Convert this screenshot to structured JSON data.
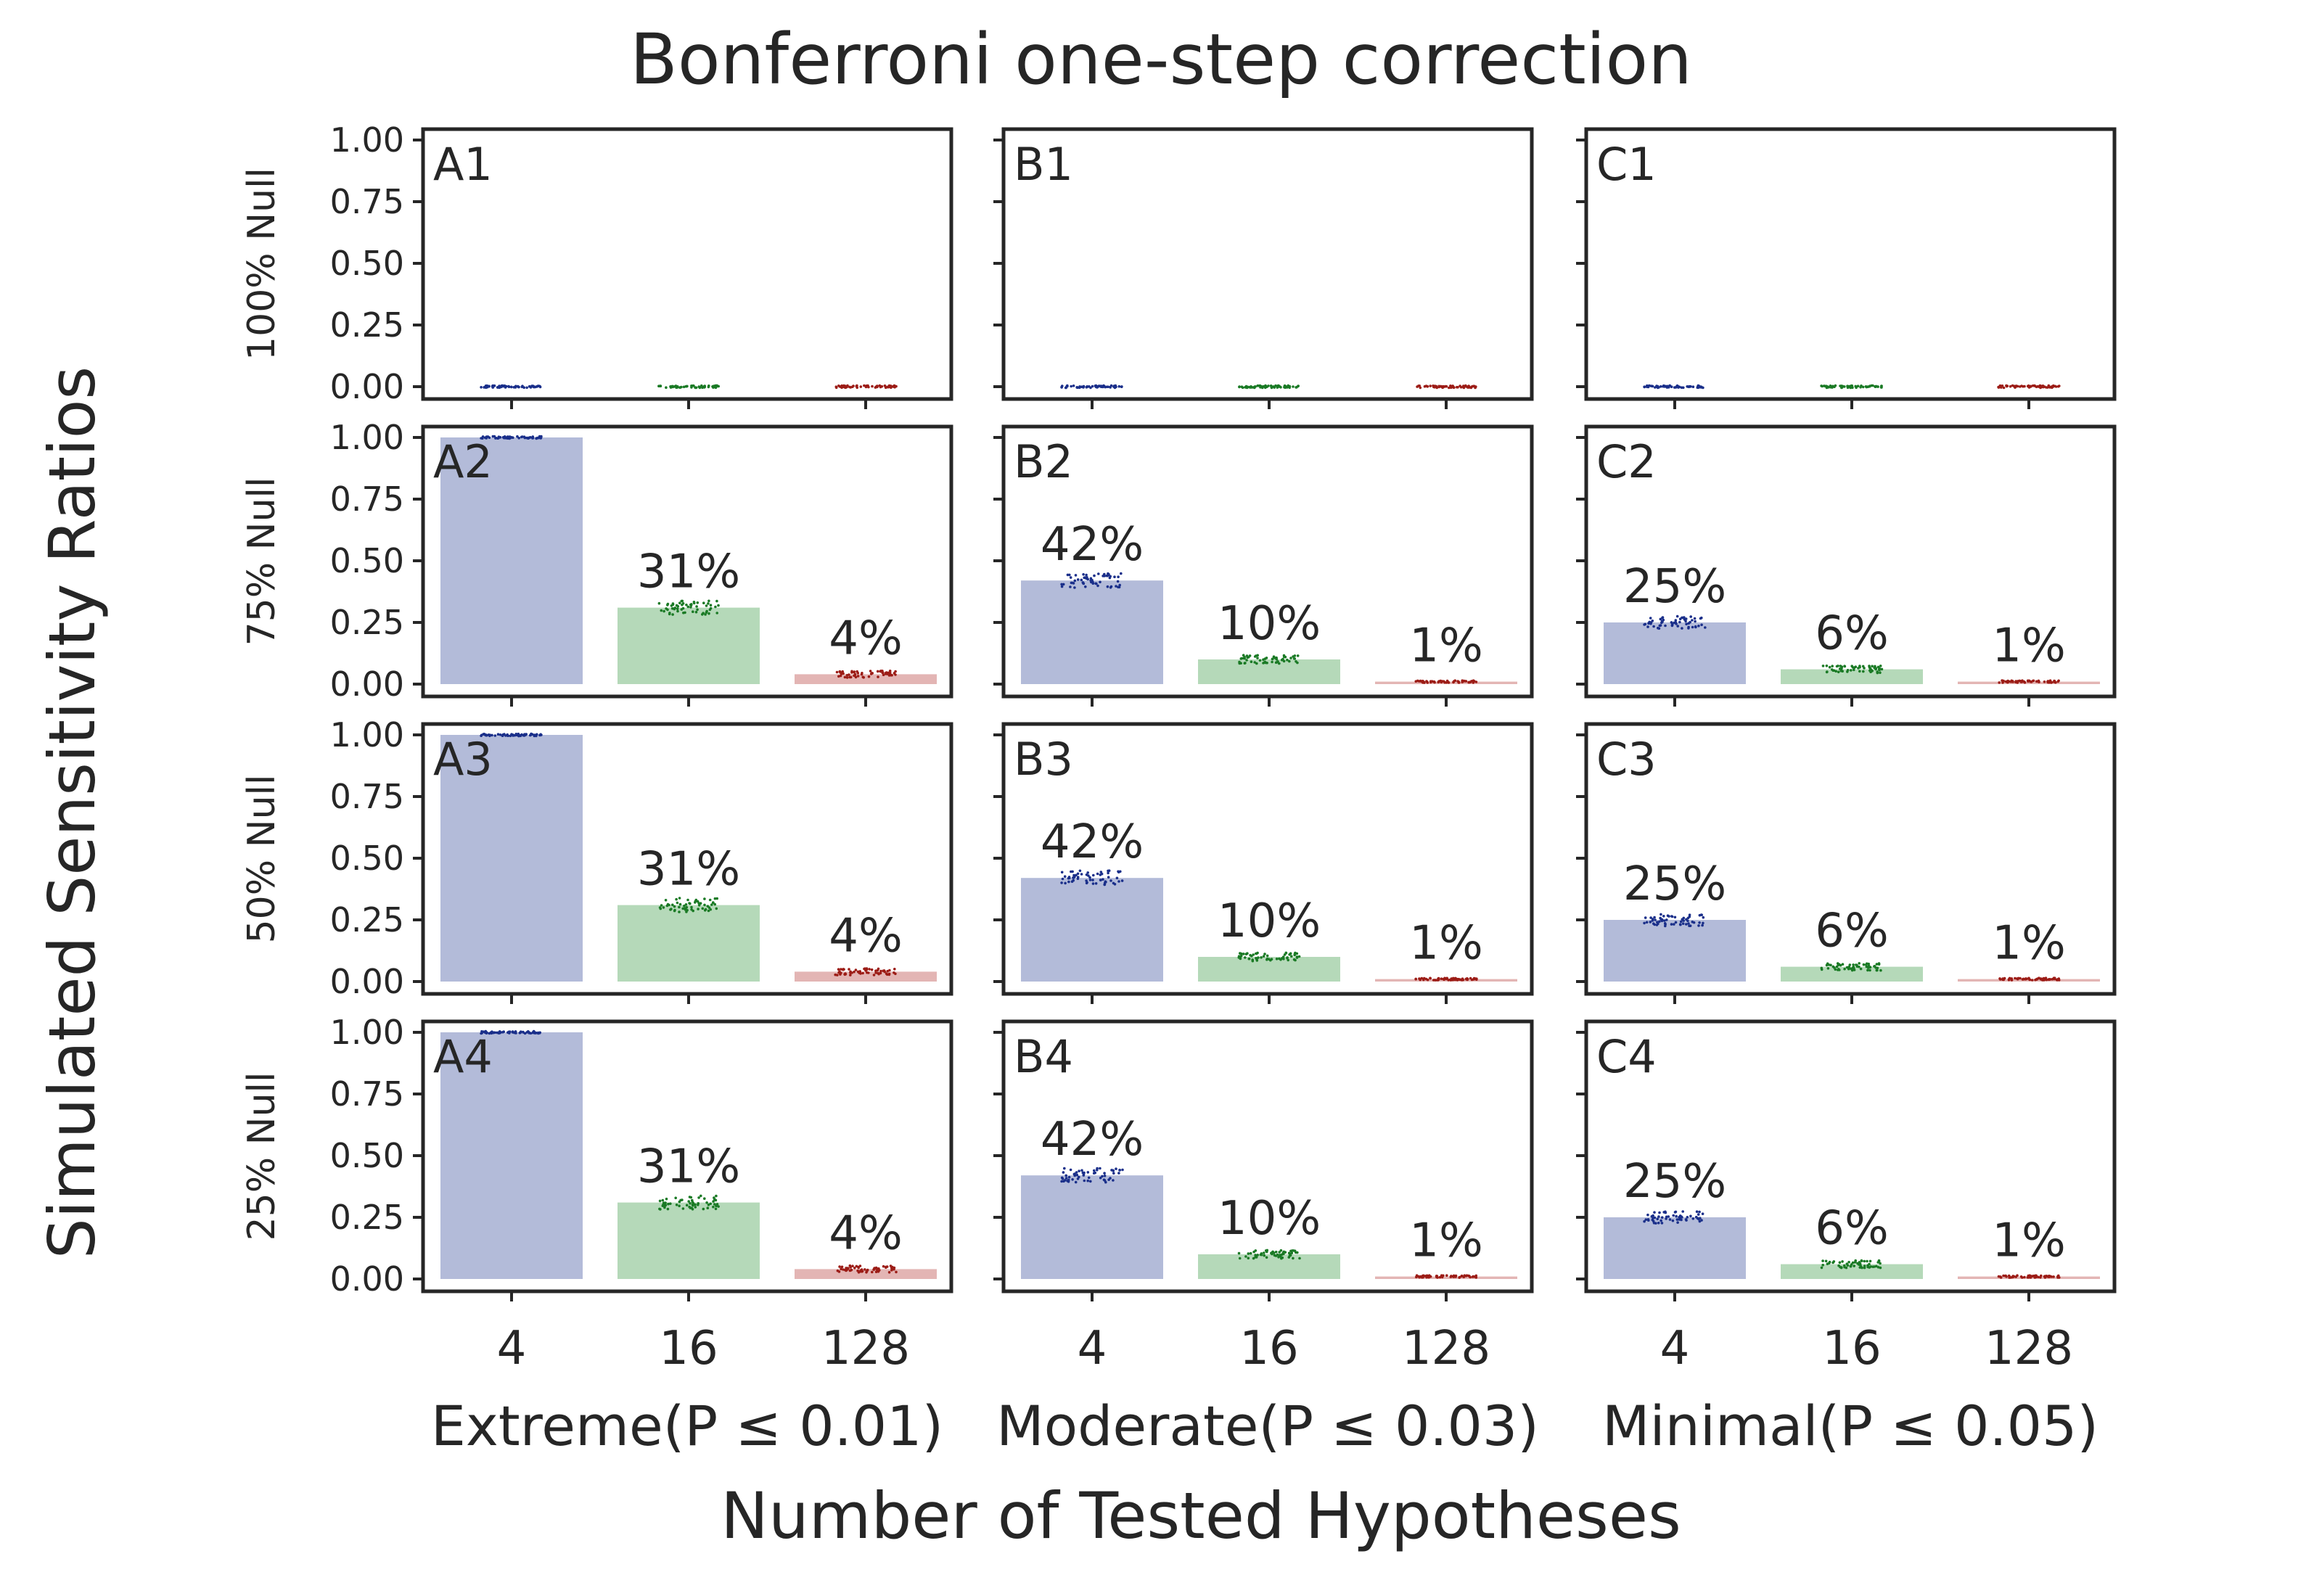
{
  "title": "Bonferroni one-step correction",
  "xlabel": "Number of Tested Hypotheses",
  "ylabel": "Simulated Sensitivity Ratios",
  "chart_data": {
    "type": "bar",
    "layout": "grid 4 rows x 3 columns, shared x and y axes",
    "categories": [
      "4",
      "16",
      "128"
    ],
    "column_labels": [
      "Extreme(P ≤ 0.01)",
      "Moderate(P ≤ 0.03)",
      "Minimal(P ≤ 0.05)"
    ],
    "row_labels": [
      "100% Null",
      "75% Null",
      "50% Null",
      "25% Null"
    ],
    "ylim": [
      0,
      1.05
    ],
    "yticks": [
      "0.00",
      "0.25",
      "0.50",
      "0.75",
      "1.00"
    ],
    "bar_colors": [
      "#b3bbd9",
      "#b5d9b9",
      "#e3b5b4"
    ],
    "point_colors": [
      "#1a2f8a",
      "#1a7a25",
      "#9c1c16"
    ],
    "grid": false,
    "panels": [
      {
        "label": "A1",
        "values": [
          0.0,
          0.0,
          0.0
        ],
        "annotations": [
          "",
          "",
          ""
        ]
      },
      {
        "label": "B1",
        "values": [
          0.0,
          0.0,
          0.0
        ],
        "annotations": [
          "",
          "",
          ""
        ]
      },
      {
        "label": "C1",
        "values": [
          0.0,
          0.0,
          0.0
        ],
        "annotations": [
          "",
          "",
          ""
        ]
      },
      {
        "label": "A2",
        "values": [
          1.0,
          0.31,
          0.04
        ],
        "annotations": [
          "",
          "31%",
          "4%"
        ]
      },
      {
        "label": "B2",
        "values": [
          0.42,
          0.1,
          0.01
        ],
        "annotations": [
          "42%",
          "10%",
          "1%"
        ]
      },
      {
        "label": "C2",
        "values": [
          0.25,
          0.06,
          0.01
        ],
        "annotations": [
          "25%",
          "6%",
          "1%"
        ]
      },
      {
        "label": "A3",
        "values": [
          1.0,
          0.31,
          0.04
        ],
        "annotations": [
          "",
          "31%",
          "4%"
        ]
      },
      {
        "label": "B3",
        "values": [
          0.42,
          0.1,
          0.01
        ],
        "annotations": [
          "42%",
          "10%",
          "1%"
        ]
      },
      {
        "label": "C3",
        "values": [
          0.25,
          0.06,
          0.01
        ],
        "annotations": [
          "25%",
          "6%",
          "1%"
        ]
      },
      {
        "label": "A4",
        "values": [
          1.0,
          0.31,
          0.04
        ],
        "annotations": [
          "",
          "31%",
          "4%"
        ]
      },
      {
        "label": "B4",
        "values": [
          0.42,
          0.1,
          0.01
        ],
        "annotations": [
          "42%",
          "10%",
          "1%"
        ]
      },
      {
        "label": "C4",
        "values": [
          0.25,
          0.06,
          0.01
        ],
        "annotations": [
          "25%",
          "6%",
          "1%"
        ]
      }
    ]
  }
}
